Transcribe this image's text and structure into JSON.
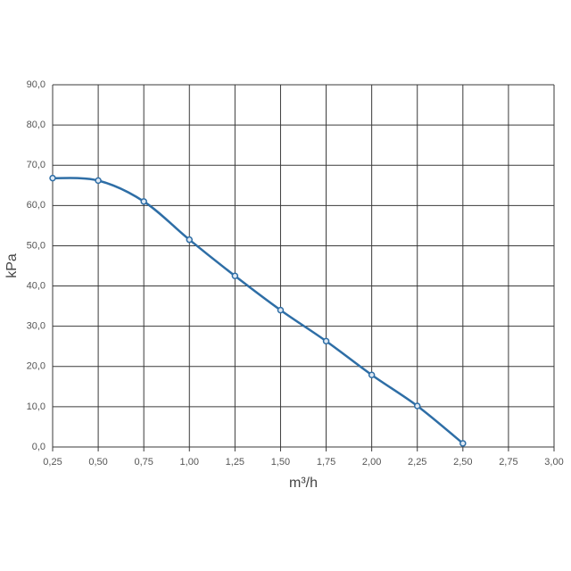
{
  "chart_data": {
    "type": "line",
    "x_label": "m³/h",
    "y_label": "kPa",
    "series": [
      {
        "name": "kPa",
        "color": "#2e6ea6",
        "x": [
          0.25,
          0.5,
          0.75,
          1.0,
          1.25,
          1.5,
          1.75,
          2.0,
          2.25,
          2.5
        ],
        "values": [
          66.8,
          66.2,
          61,
          51.5,
          42.5,
          34,
          26.3,
          17.9,
          10.2,
          0.9
        ]
      }
    ],
    "xlim": [
      0.25,
      3.0
    ],
    "xticks": [
      {
        "value": 0.25,
        "label": "0,25"
      },
      {
        "value": 0.5,
        "label": "0,50"
      },
      {
        "value": 0.75,
        "label": "0,75"
      },
      {
        "value": 1.0,
        "label": "1,00"
      },
      {
        "value": 1.25,
        "label": "1,25"
      },
      {
        "value": 1.5,
        "label": "1,50"
      },
      {
        "value": 1.75,
        "label": "1,75"
      },
      {
        "value": 2.0,
        "label": "2,00"
      },
      {
        "value": 2.25,
        "label": "2,25"
      },
      {
        "value": 2.5,
        "label": "2,50"
      },
      {
        "value": 2.75,
        "label": "2,75"
      },
      {
        "value": 3.0,
        "label": "3,00"
      }
    ],
    "ylim": [
      0,
      90
    ],
    "yticks": [
      {
        "value": 0,
        "label": "0,0"
      },
      {
        "value": 10,
        "label": "10,0"
      },
      {
        "value": 20,
        "label": "20,0"
      },
      {
        "value": 30,
        "label": "30,0"
      },
      {
        "value": 40,
        "label": "40,0"
      },
      {
        "value": 50,
        "label": "50,0"
      },
      {
        "value": 60,
        "label": "60,0"
      },
      {
        "value": 70,
        "label": "70,0"
      },
      {
        "value": 80,
        "label": "80,0"
      },
      {
        "value": 90,
        "label": "90,0"
      }
    ],
    "grid": true
  }
}
